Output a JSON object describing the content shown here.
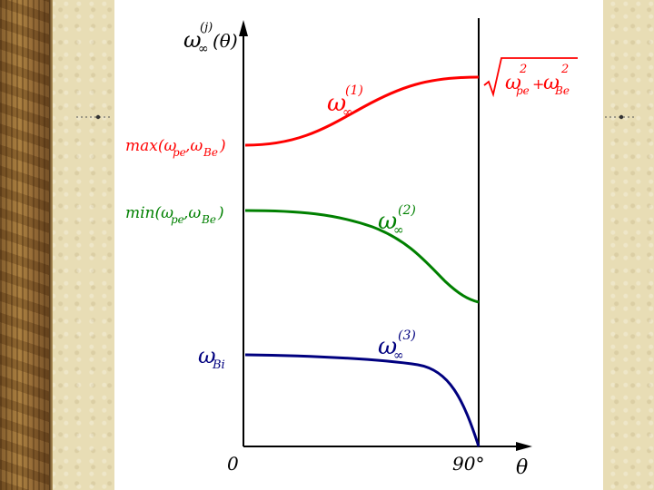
{
  "figure": {
    "y_axis_label": "ω∞(j)(θ)",
    "x_axis_label": "θ",
    "origin_label": "0",
    "x_end_label": "90°",
    "curves": [
      {
        "name": "ω∞(1)",
        "color": "#ff0000",
        "left_label": "max(ωpe,ωBe)",
        "right_label": "√(ωpe² + ωBe²)"
      },
      {
        "name": "ω∞(2)",
        "color": "#008000",
        "left_label": "min(ωpe,ωBe)"
      },
      {
        "name": "ω∞(3)",
        "color": "#00007f",
        "left_label": "ωBi"
      }
    ]
  }
}
